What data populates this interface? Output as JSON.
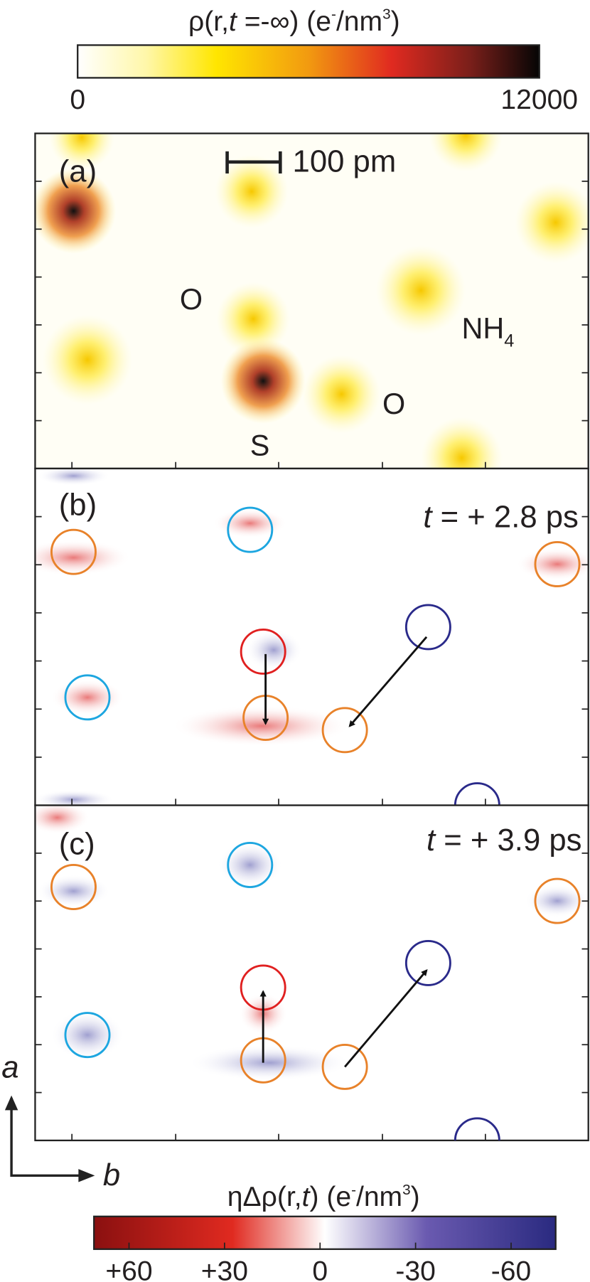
{
  "colorbar_top": {
    "label_parts": [
      "ρ(r,",
      "t",
      " =-∞)  (e",
      "-",
      "/nm",
      "3",
      ")"
    ],
    "lim": [
      0,
      12000
    ],
    "ticks": [
      0,
      12000
    ]
  },
  "panel_a": {
    "label": "(a)",
    "scale_bar": "100 pm",
    "atoms": [
      "O",
      "O",
      "S"
    ],
    "ion_parts": [
      "NH",
      "4"
    ]
  },
  "panel_b": {
    "label": "(b)",
    "time_parts": [
      "t",
      " = + 2.8 ps"
    ]
  },
  "panel_c": {
    "label": "(c)",
    "time_parts": [
      "t",
      " = + 3.9 ps"
    ]
  },
  "axes": {
    "a": "a",
    "b": "b"
  },
  "colorbar_bottom": {
    "label_parts": [
      "ηΔρ(r,",
      "t",
      ")  (e",
      "-",
      "/nm",
      "3",
      ")"
    ],
    "lim": [
      71,
      -74
    ],
    "ticks": [
      {
        "value": 60,
        "label": "+60"
      },
      {
        "value": 30,
        "label": "+30"
      },
      0,
      -30,
      -60
    ]
  }
}
